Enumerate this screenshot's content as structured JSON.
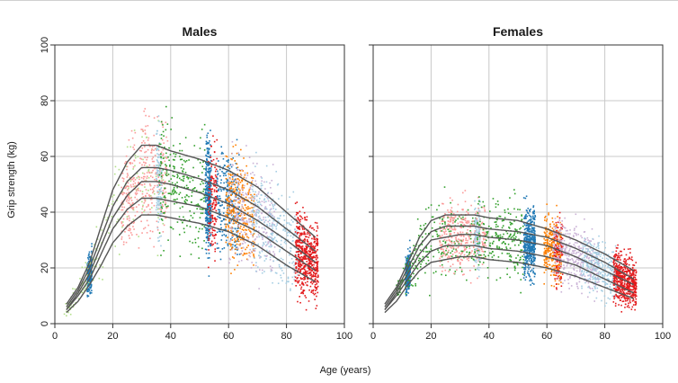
{
  "chart_data": {
    "type": "scatter",
    "ylabel": "Grip strength (kg)",
    "xlabel": "Age (years)",
    "xlim": [
      0,
      100
    ],
    "ylim": [
      0,
      100
    ],
    "x_ticks": [
      0,
      20,
      40,
      60,
      80,
      100
    ],
    "y_ticks": [
      0,
      20,
      40,
      60,
      80,
      100
    ],
    "grid": true,
    "point_colors": [
      "#a6cee3",
      "#1f78b4",
      "#33a02c",
      "#b2df8a",
      "#fb9a99",
      "#e31a1c",
      "#ff7f00",
      "#cab2d6"
    ],
    "line_color": "#555555",
    "panels": [
      {
        "title": "Males",
        "curves": [
          {
            "x": [
              4,
              8,
              12,
              16,
              20,
              25,
              30,
              35,
              40,
              50,
              60,
              70,
              80,
              90
            ],
            "y": [
              7,
              13,
              22,
              35,
              48,
              58,
              64,
              64,
              62,
              59,
              55,
              49,
              40,
              31
            ]
          },
          {
            "x": [
              4,
              8,
              12,
              16,
              20,
              25,
              30,
              35,
              40,
              50,
              60,
              70,
              80,
              90
            ],
            "y": [
              6,
              12,
              20,
              31,
              42,
              51,
              56,
              56,
              55,
              52,
              48,
              42,
              34,
              26
            ]
          },
          {
            "x": [
              4,
              8,
              12,
              16,
              20,
              25,
              30,
              35,
              40,
              50,
              60,
              70,
              80,
              90
            ],
            "y": [
              5,
              11,
              18,
              28,
              38,
              46,
              51,
              51,
              50,
              47,
              43,
              37,
              30,
              22
            ]
          },
          {
            "x": [
              4,
              8,
              12,
              16,
              20,
              25,
              30,
              35,
              40,
              50,
              60,
              70,
              80,
              90
            ],
            "y": [
              5,
              10,
              16,
              25,
              34,
              41,
              45,
              45,
              44,
              42,
              38,
              33,
              26,
              19
            ]
          },
          {
            "x": [
              4,
              8,
              12,
              16,
              20,
              25,
              30,
              35,
              40,
              50,
              60,
              70,
              80,
              90
            ],
            "y": [
              4,
              8,
              14,
              21,
              29,
              35,
              39,
              39,
              38,
              36,
              33,
              28,
              21,
              15
            ]
          }
        ]
      },
      {
        "title": "Females",
        "curves": [
          {
            "x": [
              4,
              8,
              12,
              16,
              20,
              25,
              30,
              35,
              40,
              50,
              60,
              70,
              80,
              90
            ],
            "y": [
              7,
              13,
              22,
              31,
              37,
              39,
              39,
              39,
              38,
              37,
              34,
              30,
              25,
              19
            ]
          },
          {
            "x": [
              4,
              8,
              12,
              16,
              20,
              25,
              30,
              35,
              40,
              50,
              60,
              70,
              80,
              90
            ],
            "y": [
              6,
              12,
              20,
              28,
              33,
              35,
              35,
              35,
              34,
              33,
              31,
              27,
              22,
              16
            ]
          },
          {
            "x": [
              4,
              8,
              12,
              16,
              20,
              25,
              30,
              35,
              40,
              50,
              60,
              70,
              80,
              90
            ],
            "y": [
              5,
              11,
              18,
              25,
              30,
              31,
              32,
              32,
              31,
              30,
              28,
              24,
              19,
              14
            ]
          },
          {
            "x": [
              4,
              8,
              12,
              16,
              20,
              25,
              30,
              35,
              40,
              50,
              60,
              70,
              80,
              90
            ],
            "y": [
              5,
              10,
              16,
              22,
              26,
              28,
              28,
              28,
              27,
              26,
              24,
              21,
              16,
              11
            ]
          },
          {
            "x": [
              4,
              8,
              12,
              16,
              20,
              25,
              30,
              35,
              40,
              50,
              60,
              70,
              80,
              90
            ],
            "y": [
              4,
              8,
              14,
              19,
              22,
              23,
              24,
              24,
              23,
              22,
              20,
              17,
              13,
              9
            ]
          }
        ]
      }
    ]
  }
}
